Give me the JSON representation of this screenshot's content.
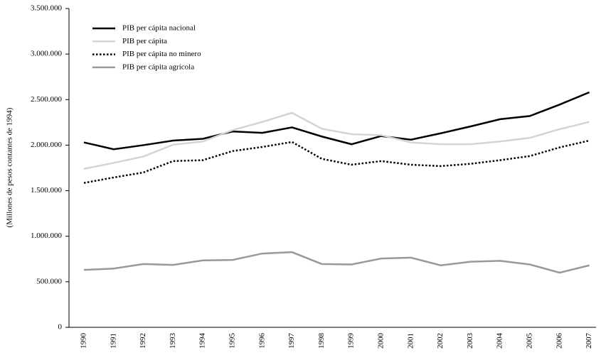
{
  "chart_data": {
    "type": "line",
    "y_label": "(Millones de pesos contantes de 1994)",
    "categories": [
      "1990",
      "1991",
      "1992",
      "1993",
      "1994",
      "1995",
      "1996",
      "1997",
      "1998",
      "1999",
      "2000",
      "2001",
      "2002",
      "2003",
      "2004",
      "2005",
      "2006",
      "2007"
    ],
    "ylim": [
      0,
      3500000
    ],
    "yticks": [
      0,
      {
        "value": 500000,
        "label": "500.000"
      },
      {
        "value": 1000000,
        "label": "1.000.000"
      },
      {
        "value": 1500000,
        "label": "1.500.000"
      },
      {
        "value": 2000000,
        "label": "2.000.000"
      },
      {
        "value": 2500000,
        "label": "2.500.000"
      },
      {
        "value": 3000000,
        "label": "3.000.000"
      },
      {
        "value": 3500000,
        "label": "3.500.000"
      }
    ],
    "legend": "top-left",
    "series": [
      {
        "name": "PIB per cápita nacional",
        "color": "#000000",
        "line_style": "solid",
        "values": [
          2030000,
          1955000,
          2000000,
          2050000,
          2070000,
          2150000,
          2135000,
          2195000,
          2095000,
          2010000,
          2100000,
          2060000,
          2130000,
          2205000,
          2285000,
          2320000,
          2445000,
          2580000
        ]
      },
      {
        "name": "PIB per cápita",
        "color": "#d4d4d4",
        "line_style": "solid",
        "values": [
          1740000,
          1805000,
          1875000,
          2005000,
          2040000,
          2165000,
          2255000,
          2355000,
          2180000,
          2120000,
          2110000,
          2030000,
          2010000,
          2010000,
          2040000,
          2080000,
          2175000,
          2255000
        ]
      },
      {
        "name": "PIB per cápita no minero",
        "color": "#000000",
        "line_style": "dotted",
        "values": [
          1585000,
          1645000,
          1700000,
          1825000,
          1835000,
          1935000,
          1980000,
          2035000,
          1850000,
          1785000,
          1825000,
          1785000,
          1770000,
          1795000,
          1835000,
          1880000,
          1975000,
          2050000
        ]
      },
      {
        "name": "PIB per cápita agrícola",
        "color": "#999999",
        "line_style": "solid",
        "values": [
          630000,
          645000,
          695000,
          685000,
          735000,
          740000,
          810000,
          825000,
          695000,
          690000,
          755000,
          765000,
          680000,
          720000,
          730000,
          690000,
          600000,
          680000
        ]
      }
    ]
  }
}
